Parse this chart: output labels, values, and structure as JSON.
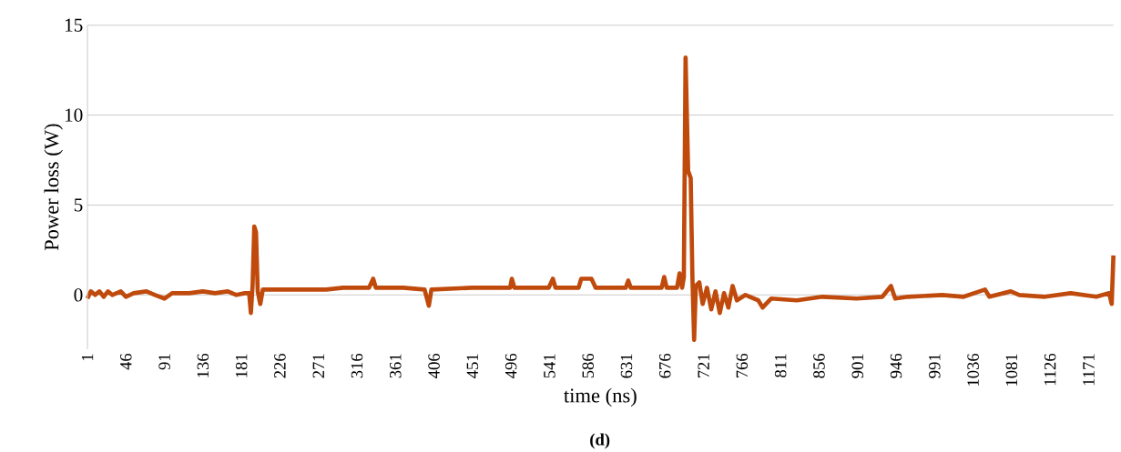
{
  "chart_data": {
    "type": "line",
    "xlabel": "time (ns)",
    "ylabel": "Power loss (W)",
    "annotations": [
      "(d)"
    ],
    "x": [
      1,
      5,
      10,
      15,
      20,
      25,
      30,
      40,
      46,
      55,
      70,
      80,
      91,
      100,
      120,
      136,
      150,
      165,
      175,
      185,
      190,
      192,
      194,
      196,
      198,
      200,
      203,
      206,
      220,
      250,
      280,
      300,
      330,
      335,
      338,
      370,
      395,
      400,
      403,
      450,
      495,
      497,
      500,
      540,
      545,
      548,
      575,
      578,
      590,
      595,
      630,
      633,
      636,
      672,
      675,
      678,
      690,
      693,
      696,
      698,
      700,
      703,
      706,
      708,
      710,
      712,
      716,
      720,
      725,
      730,
      735,
      740,
      745,
      750,
      755,
      760,
      770,
      785,
      790,
      800,
      830,
      860,
      900,
      930,
      940,
      945,
      960,
      1000,
      1025,
      1050,
      1055,
      1080,
      1090,
      1120,
      1150,
      1180,
      1195,
      1198,
      1200
    ],
    "series": [
      {
        "color": "#bf4a0c",
        "values": [
          -0.2,
          0.2,
          0,
          0.2,
          -0.1,
          0.2,
          0,
          0.2,
          -0.1,
          0.1,
          0.2,
          0,
          -0.2,
          0.1,
          0.1,
          0.2,
          0.1,
          0.2,
          0,
          0.1,
          0.1,
          -1,
          0.5,
          3.8,
          3.5,
          0.2,
          -0.5,
          0.3,
          0.3,
          0.3,
          0.3,
          0.4,
          0.4,
          0.9,
          0.4,
          0.4,
          0.3,
          -0.6,
          0.3,
          0.4,
          0.4,
          0.9,
          0.4,
          0.4,
          0.9,
          0.4,
          0.4,
          0.9,
          0.9,
          0.4,
          0.4,
          0.8,
          0.4,
          0.4,
          1,
          0.4,
          0.4,
          1.2,
          0.4,
          1,
          13.2,
          6.9,
          6.5,
          1,
          -2.5,
          0.5,
          0.7,
          -0.5,
          0.4,
          -0.8,
          0.2,
          -1,
          0.1,
          -0.7,
          0.5,
          -0.3,
          0,
          -0.3,
          -0.7,
          -0.2,
          -0.3,
          -0.1,
          -0.2,
          -0.1,
          0.5,
          -0.2,
          -0.1,
          0,
          -0.1,
          0.3,
          -0.1,
          0.2,
          0,
          -0.1,
          0.1,
          -0.1,
          0.1,
          -0.5,
          2.2
        ]
      }
    ],
    "xlim": [
      1,
      1200
    ],
    "ylim": [
      -3,
      15
    ],
    "xticks": [
      1,
      46,
      91,
      136,
      181,
      226,
      271,
      316,
      361,
      406,
      451,
      496,
      541,
      586,
      631,
      676,
      721,
      766,
      811,
      856,
      901,
      946,
      991,
      1036,
      1081,
      1126,
      1171
    ],
    "yticks": [
      0,
      5,
      10,
      15
    ],
    "grid": "y",
    "marker": "none",
    "line_style": "solid"
  }
}
